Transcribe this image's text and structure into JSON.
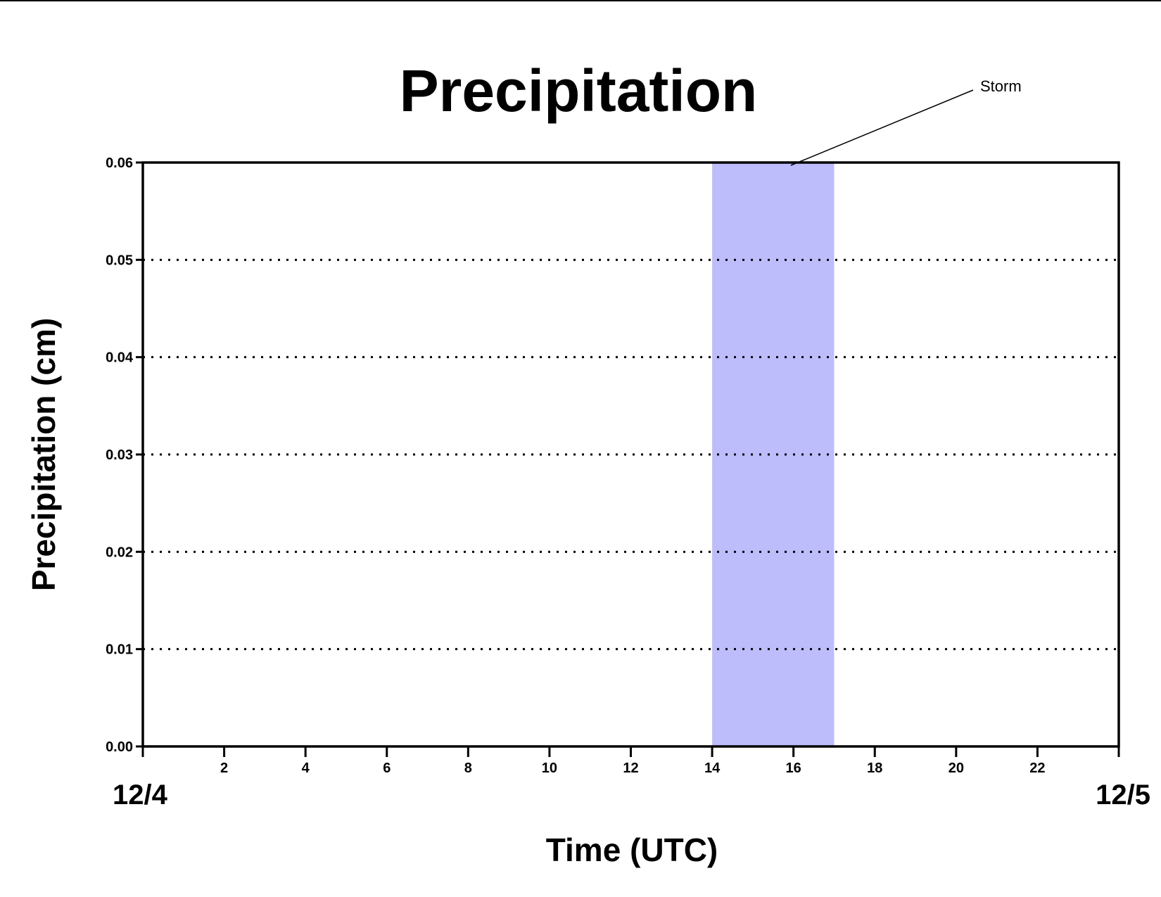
{
  "chart_data": {
    "type": "line",
    "title": "Precipitation",
    "xlabel": "Time (UTC)",
    "ylabel": "Precipitation (cm)",
    "xlim": [
      0,
      24
    ],
    "ylim": [
      0,
      0.06
    ],
    "x_ticks": [
      2,
      4,
      6,
      8,
      10,
      12,
      14,
      16,
      18,
      20,
      22
    ],
    "x_tick_labels": [
      "2",
      "4",
      "6",
      "8",
      "10",
      "12",
      "14",
      "16",
      "18",
      "20",
      "22"
    ],
    "y_ticks": [
      0,
      0.01,
      0.02,
      0.03,
      0.04,
      0.05,
      0.06
    ],
    "y_tick_labels": [
      "0.00",
      "0.01",
      "0.02",
      "0.03",
      "0.04",
      "0.05",
      "0.06"
    ],
    "date_labels": {
      "start": "12/4",
      "end": "12/5"
    },
    "grid": {
      "y": true,
      "x": false,
      "style": "dotted"
    },
    "highlight": {
      "label": "Storm",
      "x_start": 14,
      "x_end": 17,
      "color": "#bdbdfc"
    },
    "series": [
      {
        "x": [
          0,
          24
        ],
        "values": [
          0,
          0
        ],
        "color": "#8b1a1a"
      }
    ]
  }
}
